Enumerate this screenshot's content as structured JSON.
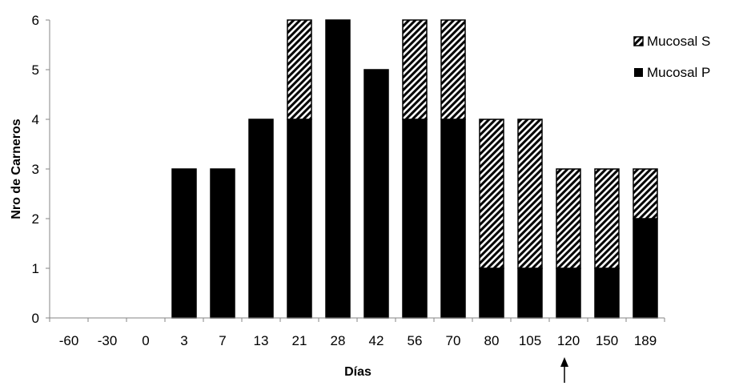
{
  "chart_data": {
    "type": "bar",
    "stacked": true,
    "title": "",
    "xlabel": "Días",
    "ylabel": "Nro de Carneros",
    "categories": [
      "-60",
      "-30",
      "0",
      "3",
      "7",
      "13",
      "21",
      "28",
      "42",
      "56",
      "70",
      "80",
      "105",
      "120",
      "150",
      "189"
    ],
    "ylim": [
      0,
      6
    ],
    "yticks": [
      "0",
      "1",
      "2",
      "3",
      "4",
      "5",
      "6"
    ],
    "grid": false,
    "legend_position": "right",
    "series": [
      {
        "name": "Mucosal P",
        "pattern": "solid",
        "color": "#000000",
        "values": [
          0,
          0,
          0,
          3,
          3,
          4,
          4,
          6,
          5,
          4,
          4,
          1,
          1,
          1,
          1,
          2
        ]
      },
      {
        "name": "Mucosal S",
        "pattern": "diagonal-stripes",
        "color": "#000000",
        "values": [
          0,
          0,
          0,
          0,
          0,
          0,
          2,
          0,
          0,
          2,
          2,
          3,
          3,
          2,
          2,
          1
        ]
      }
    ],
    "legend": [
      "Mucosal S",
      "Mucosal P"
    ],
    "annotation": {
      "type": "arrow",
      "category": "120"
    }
  }
}
